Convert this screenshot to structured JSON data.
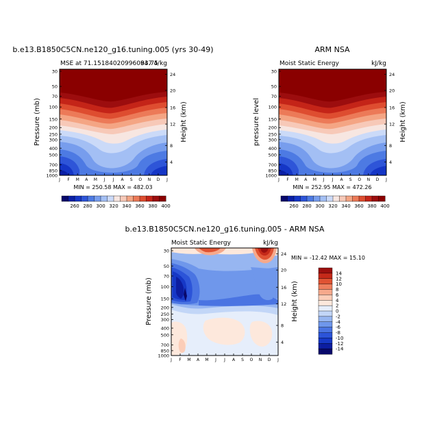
{
  "chart_data": [
    {
      "type": "heatmap",
      "title": "b.e13.B1850C5CN.ne120_g16.tuning.005 (yrs 30-49)",
      "subtitle_left": "MSE at 71.151840209960947",
      "subtitle_right": "4/kg",
      "subtitle_extra": "83.75",
      "ylabel": "Pressure (mb)",
      "ylabel_right": "Height (km)",
      "months": [
        "J",
        "F",
        "M",
        "A",
        "M",
        "J",
        "J",
        "A",
        "S",
        "O",
        "N",
        "D",
        "J"
      ],
      "pressure_ticks": [
        "30",
        "50",
        "70",
        "100",
        "150",
        "200",
        "250",
        "300",
        "400",
        "500",
        "700",
        "850",
        "1000"
      ],
      "height_ticks": [
        "24",
        "20",
        "16",
        "12",
        "8",
        "4"
      ],
      "stats": "MIN = 250.58  MAX = 482.03",
      "colorbar_labels": [
        "260",
        "280",
        "300",
        "320",
        "340",
        "360",
        "380",
        "400"
      ]
    },
    {
      "type": "heatmap",
      "title": "ARM NSA",
      "subtitle_left": "Moist Static Energy",
      "subtitle_right": "kJ/kg",
      "ylabel": "pressure level",
      "ylabel_right": "Height (km)",
      "months": [
        "J",
        "F",
        "M",
        "A",
        "M",
        "J",
        "J",
        "A",
        "S",
        "O",
        "N",
        "D",
        "J"
      ],
      "pressure_ticks": [
        "30",
        "50",
        "70",
        "100",
        "150",
        "200",
        "250",
        "300",
        "400",
        "500",
        "700",
        "850",
        "1000"
      ],
      "height_ticks": [
        "24",
        "20",
        "16",
        "12",
        "8",
        "4"
      ],
      "stats": "MIN = 252.95  MAX = 472.26",
      "colorbar_labels": [
        "260",
        "280",
        "300",
        "320",
        "340",
        "360",
        "380",
        "400"
      ]
    },
    {
      "type": "heatmap",
      "title": "b.e13.B1850C5CN.ne120_g16.tuning.005 - ARM NSA",
      "subtitle_left": "Moist Static Energy",
      "subtitle_right": "kJ/kg",
      "ylabel": "Pressure (mb)",
      "ylabel_right": "Height (km)",
      "months": [
        "J",
        "F",
        "M",
        "A",
        "M",
        "J",
        "J",
        "A",
        "S",
        "O",
        "N",
        "D",
        "J"
      ],
      "pressure_ticks": [
        "30",
        "50",
        "70",
        "100",
        "150",
        "200",
        "250",
        "300",
        "400",
        "500",
        "700",
        "850",
        "1000"
      ],
      "height_ticks": [
        "24",
        "20",
        "16",
        "12",
        "8",
        "4"
      ],
      "stats": "MIN = -12.42  MAX =  15.10",
      "colorbar_labels": [
        "14",
        "12",
        "10",
        "8",
        "6",
        "4",
        "2",
        "0",
        "-2",
        "-4",
        "-6",
        "-8",
        "-10",
        "-12",
        "-14"
      ]
    }
  ],
  "colors": {
    "abs_scale": [
      "#08086b",
      "#0a1fa5",
      "#1536c6",
      "#2e55d8",
      "#4d7ae3",
      "#779ded",
      "#a3bff4",
      "#cbdaf8",
      "#f7e6e1",
      "#f7c9b8",
      "#f4a584",
      "#ec7a58",
      "#de4d30",
      "#c42418",
      "#9c0d0e",
      "#8a0000"
    ],
    "diff_scale": [
      "#08086b",
      "#0c1da0",
      "#1638c6",
      "#2c54d8",
      "#4a74e2",
      "#6f97eb",
      "#97b6f1",
      "#c2d6f7",
      "#e6eefb",
      "#fde8dc",
      "#fbcdb8",
      "#f6a98c",
      "#ee7f5e",
      "#e05333",
      "#c52919",
      "#9c0f0e"
    ]
  }
}
